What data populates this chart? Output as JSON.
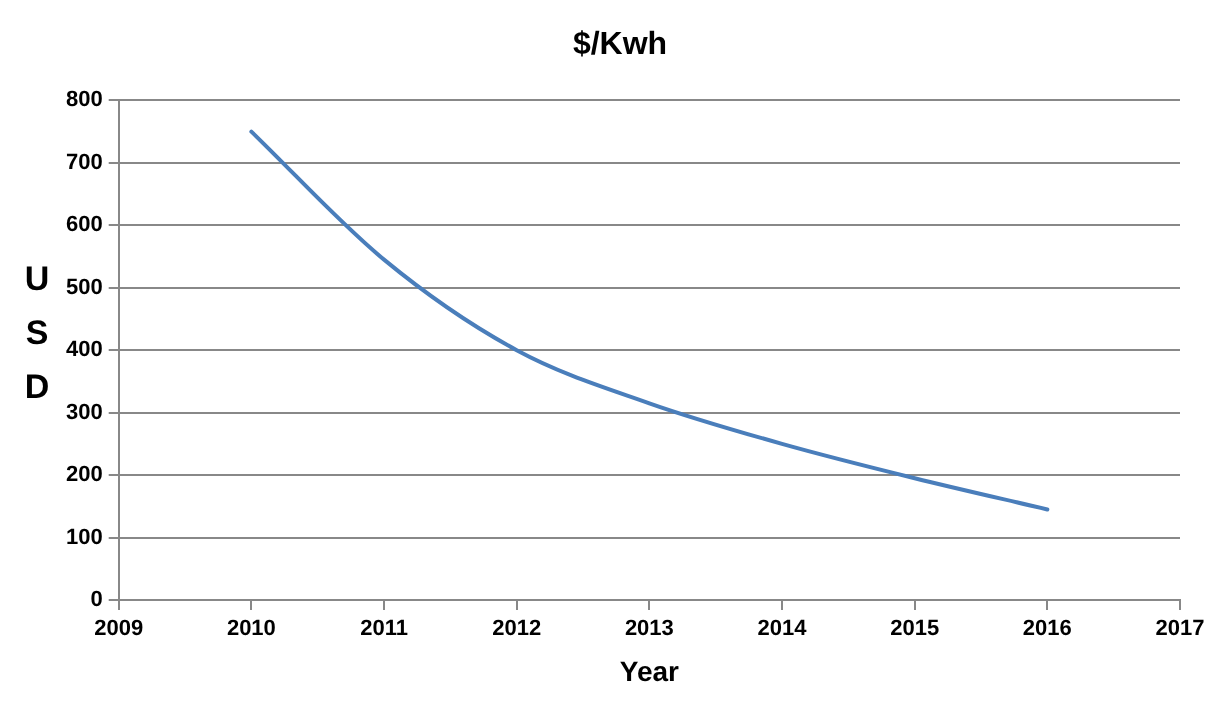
{
  "chart_data": {
    "type": "line",
    "title": "$/Kwh",
    "xlabel": "Year",
    "ylabel": "USD",
    "x": [
      2010,
      2011,
      2012,
      2013,
      2014,
      2015,
      2016
    ],
    "series": [
      {
        "color": "#4a7ebb",
        "values": [
          750,
          545,
          400,
          315,
          250,
          195,
          145
        ]
      }
    ],
    "xlim": [
      2009,
      2017
    ],
    "xticks": [
      2009,
      2010,
      2011,
      2012,
      2013,
      2014,
      2015,
      2016,
      2017
    ],
    "ylim": [
      0,
      800
    ],
    "yticks": [
      0,
      100,
      200,
      300,
      400,
      500,
      600,
      700,
      800
    ],
    "grid": "y",
    "legend": false,
    "marker": "none",
    "line_style": "solid"
  }
}
